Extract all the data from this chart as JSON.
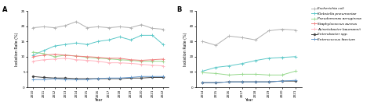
{
  "panel_A": {
    "years": [
      2010,
      2011,
      2012,
      2013,
      2014,
      2015,
      2016,
      2017,
      2018,
      2019,
      2020,
      2021,
      2022
    ],
    "series": [
      {
        "name": "Escherichia coli",
        "values": [
          19.5,
          19.8,
          19.5,
          20.2,
          21.5,
          19.5,
          19.8,
          19.5,
          19.8,
          19.5,
          20.5,
          19.3,
          19.0
        ],
        "color": "#b0b0b0",
        "marker": "+"
      },
      {
        "name": "Klebsiella pneumoniae",
        "values": [
          10.5,
          12.0,
          13.5,
          14.0,
          14.5,
          14.0,
          15.0,
          15.5,
          16.5,
          15.5,
          17.0,
          17.0,
          14.0
        ],
        "color": "#5bc8c8",
        "marker": "+"
      },
      {
        "name": "Pseudomonas aeruginosa",
        "values": [
          11.5,
          11.0,
          10.0,
          10.5,
          10.2,
          9.8,
          9.5,
          9.3,
          9.0,
          8.8,
          8.5,
          8.5,
          8.5
        ],
        "color": "#98d98e",
        "marker": "+"
      },
      {
        "name": "Staphylococcus aureus",
        "values": [
          10.0,
          10.5,
          10.8,
          10.5,
          10.2,
          10.0,
          9.8,
          9.5,
          9.5,
          9.0,
          8.8,
          9.0,
          9.2
        ],
        "color": "#f08080",
        "marker": "+"
      },
      {
        "name": "Acinetobacter baumannii",
        "values": [
          8.5,
          9.0,
          9.2,
          9.5,
          9.0,
          8.8,
          8.5,
          8.0,
          8.0,
          7.8,
          7.5,
          7.2,
          7.0
        ],
        "color": "#ffb6c1",
        "marker": "+"
      },
      {
        "name": "Enterobacter spp.",
        "values": [
          3.5,
          3.2,
          3.0,
          3.0,
          2.8,
          2.8,
          2.8,
          2.8,
          2.8,
          3.0,
          3.0,
          3.2,
          3.2
        ],
        "color": "#404040",
        "marker": "D"
      },
      {
        "name": "Enterococcus faecium",
        "values": [
          2.5,
          2.5,
          2.8,
          2.5,
          2.5,
          2.5,
          2.8,
          3.0,
          3.0,
          3.2,
          3.5,
          3.5,
          3.5
        ],
        "color": "#6699cc",
        "marker": "+"
      }
    ],
    "ylim": [
      0,
      25
    ],
    "yticks": [
      0,
      5,
      10,
      15,
      20,
      25
    ],
    "ylabel": "Isolation Rate (%)",
    "xlabel": "Year",
    "title": "A"
  },
  "panel_B": {
    "years": [
      2014,
      2015,
      2016,
      2017,
      2018,
      2019,
      2020,
      2021
    ],
    "series": [
      {
        "name": "Escherichia coli",
        "values": [
          30.0,
          27.5,
          33.5,
          32.5,
          31.0,
          37.0,
          38.0,
          37.5
        ],
        "color": "#b0b0b0",
        "marker": "+"
      },
      {
        "name": "Klebsiella pneumoniae",
        "values": [
          10.5,
          13.0,
          14.0,
          15.5,
          17.5,
          19.0,
          19.5,
          20.0
        ],
        "color": "#5bc8c8",
        "marker": "+"
      },
      {
        "name": "Pseudomonas aeruginosa",
        "values": [
          9.5,
          9.0,
          8.0,
          8.5,
          8.5,
          8.0,
          8.0,
          10.5
        ],
        "color": "#98d98e",
        "marker": "+"
      },
      {
        "name": "Enterobacter spp.",
        "values": [
          3.0,
          3.0,
          3.5,
          3.5,
          3.5,
          3.5,
          4.0,
          4.0
        ],
        "color": "#404040",
        "marker": "D"
      },
      {
        "name": "Enterococcus faecium",
        "values": [
          3.0,
          3.0,
          3.5,
          3.5,
          3.5,
          3.5,
          4.0,
          4.5
        ],
        "color": "#6699cc",
        "marker": "+"
      }
    ],
    "ylim": [
      0,
      50
    ],
    "yticks": [
      0,
      10,
      20,
      30,
      40,
      50
    ],
    "ylabel": "Isolation Rate (%)",
    "xlabel": "Year",
    "title": "B"
  },
  "legend_entries": [
    {
      "label": "Escherichia coli",
      "color": "#b0b0b0",
      "marker": "+"
    },
    {
      "label": "Klebsiella pneumoniae",
      "color": "#5bc8c8",
      "marker": "+"
    },
    {
      "label": "Pseudomonas aeruginosa",
      "color": "#98d98e",
      "marker": "+"
    },
    {
      "label": "Staphylococcus aureus",
      "color": "#f08080",
      "marker": "+"
    },
    {
      "label": "Acinetobacter baumannii",
      "color": "#ffb6c1",
      "marker": "+"
    },
    {
      "label": "Enterobacter spp.",
      "color": "#404040",
      "marker": "D"
    },
    {
      "label": "Enterococcus faecium",
      "color": "#6699cc",
      "marker": "+"
    }
  ],
  "fig_width": 5.0,
  "fig_height": 1.4,
  "dpi": 100
}
